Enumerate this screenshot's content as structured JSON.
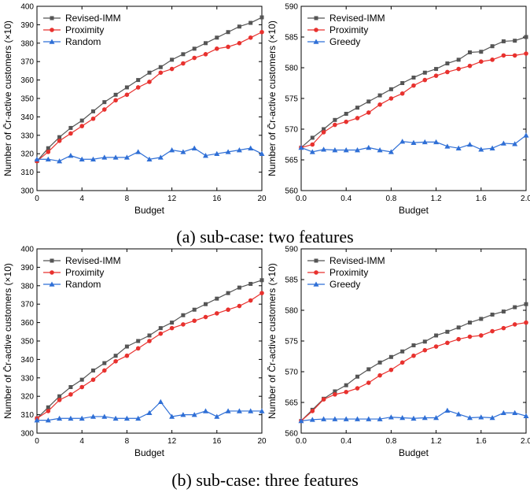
{
  "captions": [
    "(a) sub-case: two features",
    "(b) sub-case: three features"
  ],
  "chart_data": [
    {
      "type": "line",
      "xlabel": "Budget",
      "ylabel": "Number of C̄r-active customers (×10)",
      "xlim": [
        0,
        20
      ],
      "ylim": [
        300,
        400
      ],
      "xticks": [
        "0",
        "4",
        "8",
        "12",
        "16",
        "20"
      ],
      "yticks": [
        "300",
        "310",
        "320",
        "330",
        "340",
        "350",
        "360",
        "370",
        "380",
        "390",
        "400"
      ],
      "x": [
        0,
        1,
        2,
        3,
        4,
        5,
        6,
        7,
        8,
        9,
        10,
        11,
        12,
        13,
        14,
        15,
        16,
        17,
        18,
        19,
        20
      ],
      "legend": "top-left",
      "series": [
        {
          "name": "Revised-IMM",
          "color": "#555555",
          "marker": "square",
          "values": [
            316,
            323,
            329,
            334,
            338,
            343,
            348,
            352,
            356,
            360,
            364,
            367,
            371,
            374,
            377,
            380,
            383,
            386,
            389,
            391,
            394
          ]
        },
        {
          "name": "Proximity",
          "color": "#e8312e",
          "marker": "circle",
          "values": [
            316,
            321,
            327,
            331,
            335,
            339,
            344,
            349,
            352,
            356,
            359,
            364,
            366,
            369,
            372,
            374,
            377,
            378,
            380,
            383,
            386
          ]
        },
        {
          "name": "Random",
          "color": "#2f6fd6",
          "marker": "triangle",
          "values": [
            317,
            317,
            316,
            319,
            317,
            317,
            318,
            318,
            318,
            321,
            317,
            318,
            322,
            321,
            323,
            319,
            320,
            321,
            322,
            323,
            320
          ]
        }
      ]
    },
    {
      "type": "line",
      "xlabel": "Budget",
      "ylabel": "Number of C̄r-active customers (×10)",
      "xlim": [
        0,
        2.0
      ],
      "ylim": [
        560,
        590
      ],
      "xticks": [
        "0.0",
        "0.4",
        "0.8",
        "1.2",
        "1.6",
        "2.0"
      ],
      "yticks": [
        "560",
        "565",
        "570",
        "575",
        "580",
        "585",
        "590"
      ],
      "x": [
        0,
        0.1,
        0.2,
        0.3,
        0.4,
        0.5,
        0.6,
        0.7,
        0.8,
        0.9,
        1.0,
        1.1,
        1.2,
        1.3,
        1.4,
        1.5,
        1.6,
        1.7,
        1.8,
        1.9,
        2.0
      ],
      "legend": "top-left",
      "series": [
        {
          "name": "Revised-IMM",
          "color": "#555555",
          "marker": "square",
          "values": [
            567,
            568.6,
            570,
            571.5,
            572.5,
            573.5,
            574.5,
            575.5,
            576.5,
            577.5,
            578.4,
            579.2,
            579.8,
            580.7,
            581.3,
            582.5,
            582.6,
            583.5,
            584.3,
            584.4,
            585
          ]
        },
        {
          "name": "Proximity",
          "color": "#e8312e",
          "marker": "circle",
          "values": [
            567,
            567.5,
            569.5,
            570.7,
            571.2,
            571.8,
            572.7,
            574,
            575,
            575.8,
            577.1,
            578,
            578.7,
            579.3,
            579.8,
            580.3,
            581,
            581.3,
            582,
            582,
            582.3
          ]
        },
        {
          "name": "Greedy",
          "color": "#2f6fd6",
          "marker": "triangle",
          "values": [
            567,
            566.3,
            566.7,
            566.6,
            566.6,
            566.6,
            567,
            566.6,
            566.3,
            568,
            567.8,
            567.9,
            567.9,
            567.2,
            566.9,
            567.5,
            566.7,
            566.9,
            567.7,
            567.6,
            569
          ]
        }
      ]
    },
    {
      "type": "line",
      "xlabel": "Budget",
      "ylabel": "Number of C̄r-active customers (×10)",
      "xlim": [
        0,
        20
      ],
      "ylim": [
        300,
        400
      ],
      "xticks": [
        "0",
        "4",
        "8",
        "12",
        "16",
        "20"
      ],
      "yticks": [
        "300",
        "310",
        "320",
        "330",
        "340",
        "350",
        "360",
        "370",
        "380",
        "390",
        "400"
      ],
      "x": [
        0,
        1,
        2,
        3,
        4,
        5,
        6,
        7,
        8,
        9,
        10,
        11,
        12,
        13,
        14,
        15,
        16,
        17,
        18,
        19,
        20
      ],
      "legend": "top-left",
      "series": [
        {
          "name": "Revised-IMM",
          "color": "#555555",
          "marker": "square",
          "values": [
            308,
            314,
            320,
            325,
            329,
            334,
            338,
            342,
            347,
            350,
            353,
            357,
            360,
            364,
            367,
            370,
            373,
            376,
            379,
            381,
            383
          ]
        },
        {
          "name": "Proximity",
          "color": "#e8312e",
          "marker": "circle",
          "values": [
            308,
            312,
            318,
            321,
            325,
            329,
            334,
            339,
            342,
            346,
            350,
            354,
            357,
            359,
            361,
            363,
            365,
            367,
            369,
            372,
            376
          ]
        },
        {
          "name": "Random",
          "color": "#2f6fd6",
          "marker": "triangle",
          "values": [
            307,
            307,
            308,
            308,
            308,
            309,
            309,
            308,
            308,
            308,
            311,
            317,
            309,
            310,
            310,
            312,
            309,
            312,
            312,
            312,
            312
          ]
        }
      ]
    },
    {
      "type": "line",
      "xlabel": "Budget",
      "ylabel": "Number of C̄r-active customers (×10)",
      "xlim": [
        0,
        2.0
      ],
      "ylim": [
        560,
        590
      ],
      "xticks": [
        "0.0",
        "0.4",
        "0.8",
        "1.2",
        "1.6",
        "2.0"
      ],
      "yticks": [
        "560",
        "565",
        "570",
        "575",
        "580",
        "585",
        "590"
      ],
      "x": [
        0,
        0.1,
        0.2,
        0.3,
        0.4,
        0.5,
        0.6,
        0.7,
        0.8,
        0.9,
        1.0,
        1.1,
        1.2,
        1.3,
        1.4,
        1.5,
        1.6,
        1.7,
        1.8,
        1.9,
        2.0
      ],
      "legend": "top-left",
      "series": [
        {
          "name": "Revised-IMM",
          "color": "#555555",
          "marker": "square",
          "values": [
            562,
            563.8,
            565.6,
            566.8,
            567.8,
            569.2,
            570.4,
            571.5,
            572.4,
            573.3,
            574.3,
            574.9,
            575.9,
            576.5,
            577.2,
            578,
            578.6,
            579.3,
            579.8,
            580.5,
            581
          ]
        },
        {
          "name": "Proximity",
          "color": "#e8312e",
          "marker": "circle",
          "values": [
            562,
            563.6,
            565.5,
            566.3,
            566.7,
            567.3,
            568.2,
            569.4,
            570.3,
            571.5,
            572.6,
            573.5,
            574.1,
            574.7,
            575.3,
            575.7,
            575.9,
            576.6,
            577.1,
            577.7,
            578
          ]
        },
        {
          "name": "Greedy",
          "color": "#2f6fd6",
          "marker": "triangle",
          "values": [
            562,
            562.2,
            562.3,
            562.3,
            562.3,
            562.3,
            562.3,
            562.3,
            562.6,
            562.5,
            562.4,
            562.5,
            562.5,
            563.7,
            563.1,
            562.5,
            562.6,
            562.5,
            563.3,
            563.3,
            562.8
          ]
        }
      ]
    }
  ]
}
